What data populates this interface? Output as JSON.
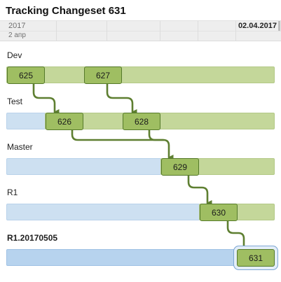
{
  "title": "Tracking Changeset 631",
  "timeline": {
    "year": "2017",
    "day": "2 апр",
    "date": "02.04.2017"
  },
  "lanes": [
    {
      "label": "Dev"
    },
    {
      "label": "Test"
    },
    {
      "label": "Master"
    },
    {
      "label": "R1"
    },
    {
      "label": "R1.20170505"
    }
  ],
  "changesets": {
    "c625": "625",
    "c627": "627",
    "c626": "626",
    "c628": "628",
    "c629": "629",
    "c630": "630",
    "c631": "631"
  },
  "colors": {
    "changeset_fill": "#9fbe62",
    "changeset_border": "#557a2a",
    "arrow": "#5e7f31",
    "lane_green": "#c4d79a",
    "lane_blue": "#cde0f1"
  },
  "icons": {
    "arrow_head": "arrow-down-icon"
  }
}
